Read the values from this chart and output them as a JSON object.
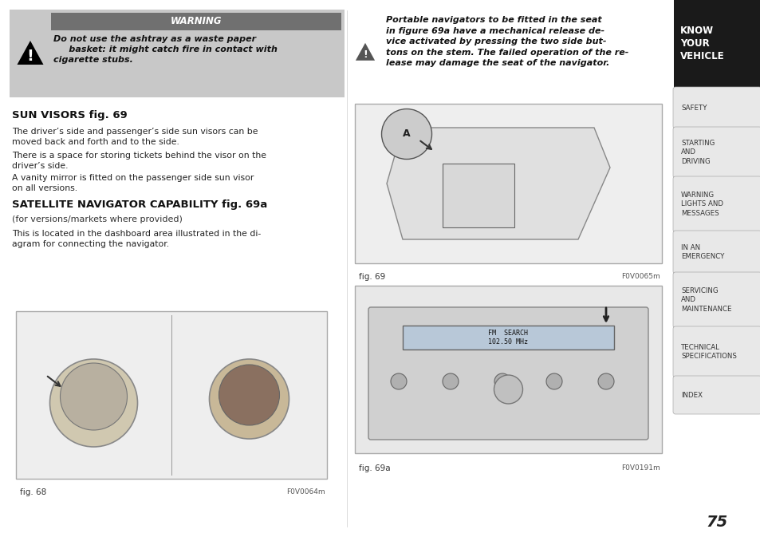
{
  "page_bg": "#ffffff",
  "sidebar_bg": "#1a1a1a",
  "sidebar_active_text": "#ffffff",
  "sidebar_tab_bg": "#e8e8e8",
  "sidebar_tab_text": "#333333",
  "sidebar_tabs": [
    "SAFETY",
    "STARTING\nAND\nDRIVING",
    "WARNING\nLIGHTS AND\nMESSAGES",
    "IN AN\nEMERGENCY",
    "SERVICING\nAND\nMAINTENANCE",
    "TECHNICAL\nSPECIFICATIONS",
    "INDEX"
  ],
  "sidebar_active": "KNOW\nYOUR\nVEHICLE",
  "page_number": "75",
  "warning_bg": "#b0b0b0",
  "warning_header_bg": "#6b6b6b",
  "warning_header_text": "WARNING",
  "warning_text": "Do not use the ashtray as a waste paper\n     basket: it might catch fire in contact with\ncigarette stubs.",
  "warning2_text": "Portable navigators to be fitted in the seat\nin figure 69a have a mechanical release de-\nvice activated by pressing the two side but-\ntons on the stem. The failed operation of the re-\nlease may damage the seat of the navigator.",
  "section1_title": "SUN VISORS fig. 69",
  "section1_para1": "The driver’s side and passenger’s side sun visors can be\nmoved back and forth and to the side.",
  "section1_para2": "There is a space for storing tickets behind the visor on the\ndriver’s side.",
  "section1_para3": "A vanity mirror is fitted on the passenger side sun visor\non all versions.",
  "section2_title": "SATELLITE NAVIGATOR CAPABILITY fig. 69a",
  "section2_subtitle": "(for versions/markets where provided)",
  "section2_para1": "This is located in the dashboard area illustrated in the di-\nagram for connecting the navigator.",
  "fig68_label": "fig. 68",
  "fig68_code": "F0V0064m",
  "fig69_label": "fig. 69",
  "fig69_code": "F0V0065m",
  "fig69a_label": "fig. 69a",
  "fig69a_code": "F0V0191m",
  "main_bg": "#f5f5f5"
}
